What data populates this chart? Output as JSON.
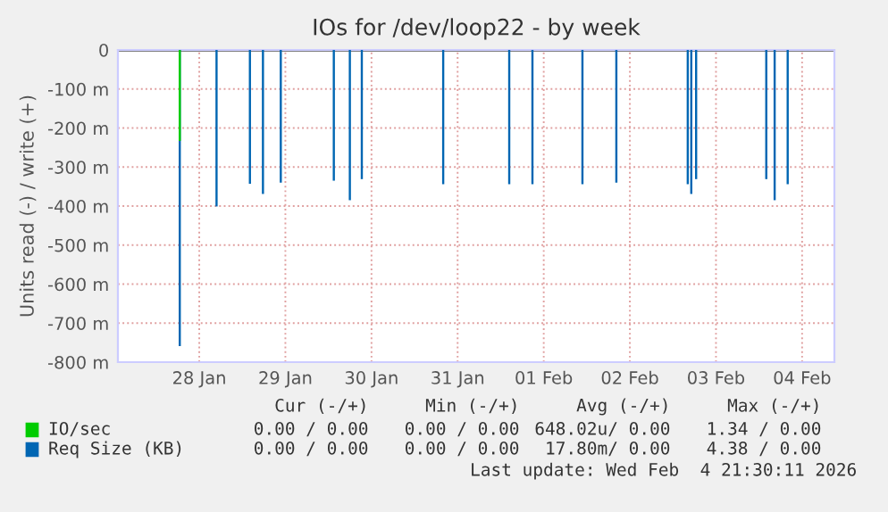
{
  "chart_data": {
    "type": "bar",
    "title": "IOs for /dev/loop22 - by week",
    "ylabel": "Units read (-) / write (+)",
    "xlim": [
      "2026-01-27T13:20",
      "2026-02-04T21:00"
    ],
    "xticks": [
      {
        "value": "2026-01-28T12:00",
        "label": "28 Jan"
      },
      {
        "value": "2026-01-29T12:00",
        "label": "29 Jan"
      },
      {
        "value": "2026-01-30T12:00",
        "label": "30 Jan"
      },
      {
        "value": "2026-01-31T12:00",
        "label": "31 Jan"
      },
      {
        "value": "2026-02-01T12:00",
        "label": "01 Feb"
      },
      {
        "value": "2026-02-02T12:00",
        "label": "02 Feb"
      },
      {
        "value": "2026-02-03T12:00",
        "label": "03 Feb"
      },
      {
        "value": "2026-02-04T12:00",
        "label": "04 Feb"
      }
    ],
    "ylim": [
      -800,
      0
    ],
    "yticks": [
      0,
      {
        "value": -100,
        "label": "-100 m"
      },
      {
        "value": -200,
        "label": "-200 m"
      },
      {
        "value": -300,
        "label": "-300 m"
      },
      {
        "value": -400,
        "label": "-400 m"
      },
      {
        "value": -500,
        "label": "-500 m"
      },
      {
        "value": -600,
        "label": "-600 m"
      },
      {
        "value": -700,
        "label": "-700 m"
      },
      {
        "value": -800,
        "label": "-800 m"
      }
    ],
    "grid": true,
    "legend": "bottom",
    "series": [
      {
        "name": "IO/sec",
        "color": "#00cc00",
        "x": [
          "2026-01-28T06:34"
        ],
        "values": [
          -233
        ]
      },
      {
        "name": "Req Size (KB)",
        "color": "#0066b3",
        "x": [
          "2026-01-28T06:34",
          "2026-01-28T16:49",
          "2026-01-29T02:07",
          "2026-01-29T05:45",
          "2026-01-29T10:43",
          "2026-01-30T01:30",
          "2026-01-30T05:58",
          "2026-01-30T09:18",
          "2026-01-31T07:59",
          "2026-02-01T02:23",
          "2026-02-01T08:51",
          "2026-02-01T22:47",
          "2026-02-02T08:14",
          "2026-02-03T04:08",
          "2026-02-03T05:07",
          "2026-02-03T06:28",
          "2026-02-04T02:01",
          "2026-02-04T04:21",
          "2026-02-04T07:59"
        ],
        "values": [
          -759,
          -401,
          -343,
          -369,
          -340,
          -335,
          -385,
          -331,
          -344,
          -344,
          -344,
          -344,
          -340,
          -344,
          -369,
          -331,
          -331,
          -385,
          -344
        ]
      }
    ],
    "ref_lines": [
      {
        "axis": "y",
        "value": 0,
        "color": "#000000"
      }
    ],
    "annotations": [
      "Cur (-/+)",
      "Min (-/+)",
      "Avg (-/+)",
      "Max (-/+)",
      "0.00 / 0.00",
      "0.00 / 0.00",
      "648.02u/ 0.00",
      "1.34 / 0.00",
      "0.00 / 0.00",
      "0.00 / 0.00",
      "17.80m/ 0.00",
      "4.38 / 0.00",
      "Last update: Wed Feb  4 21:30:11 2026"
    ]
  }
}
